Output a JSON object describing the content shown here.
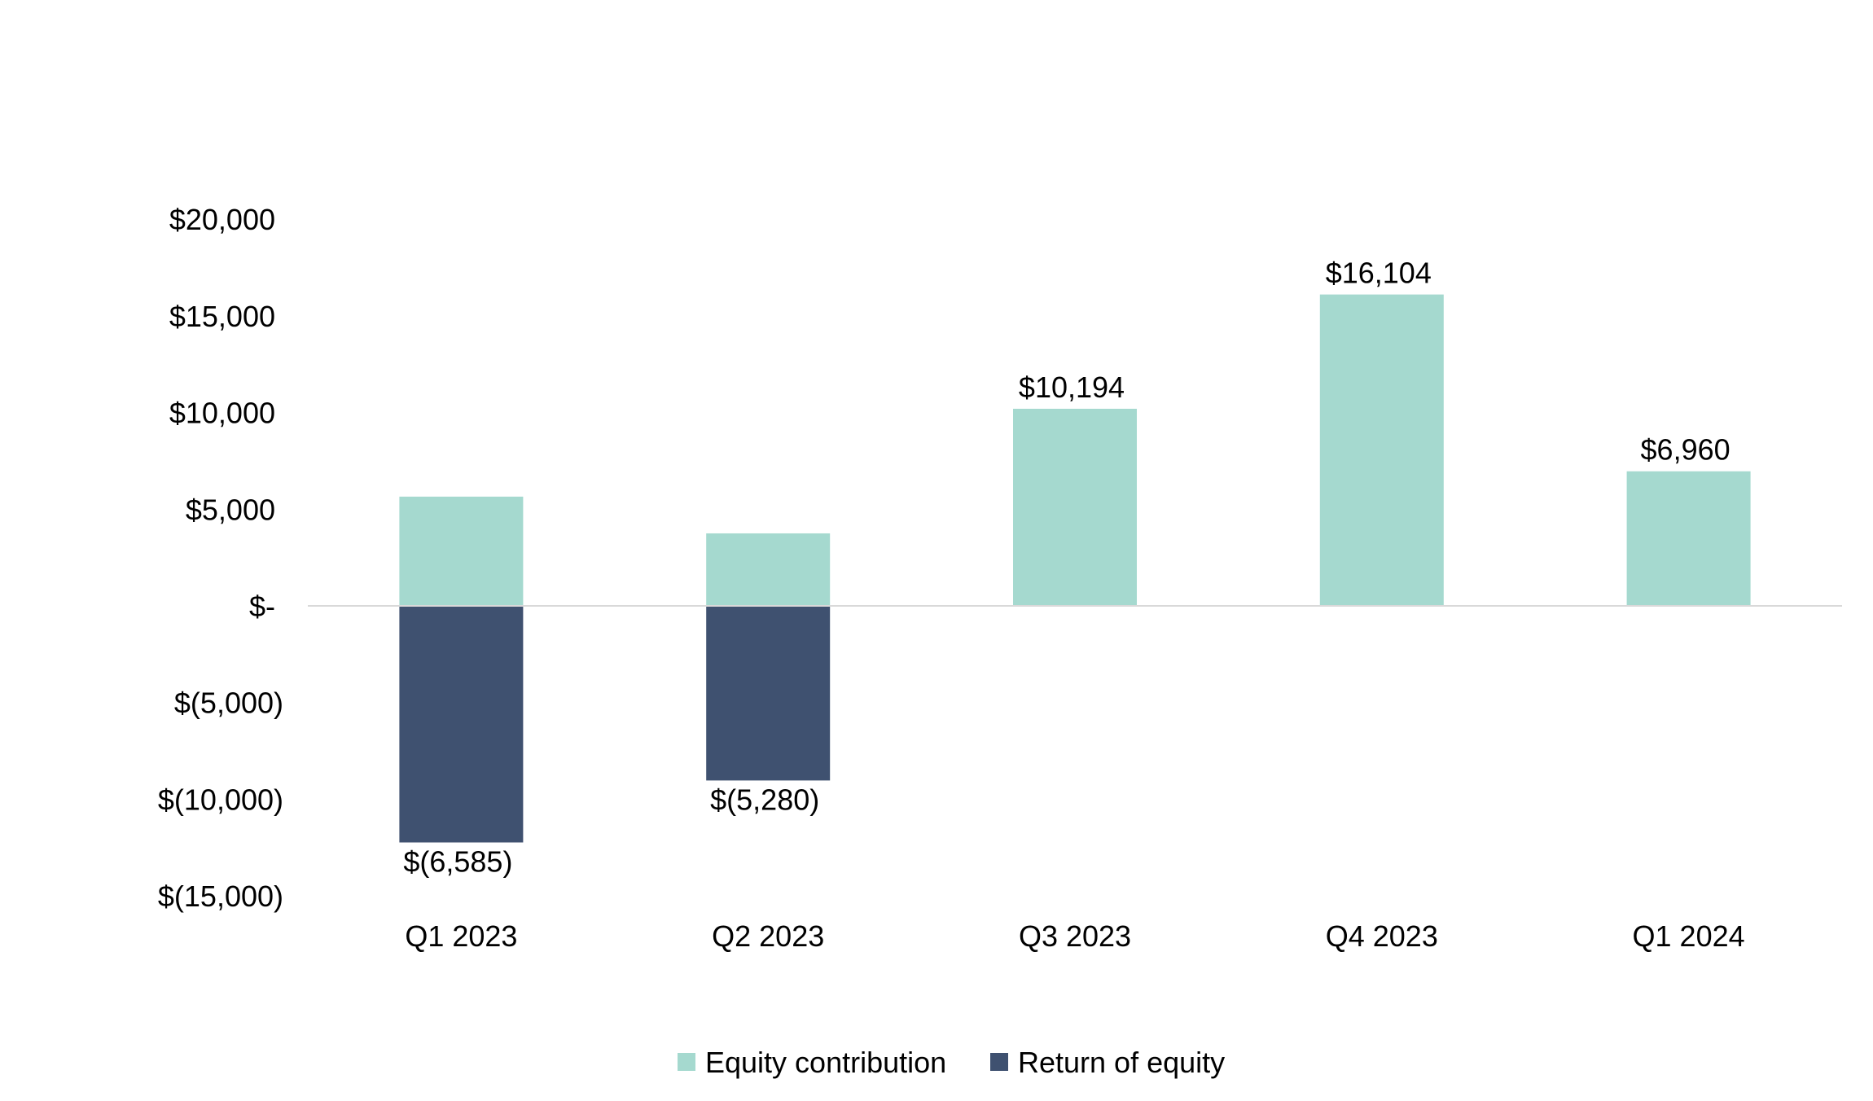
{
  "chart_data": {
    "type": "bar",
    "stacked": true,
    "categories": [
      "Q1 2023",
      "Q2 2023",
      "Q3 2023",
      "Q4 2023",
      "Q1 2024"
    ],
    "series": [
      {
        "name": "Equity contribution",
        "color": "#a5d9cf",
        "values": [
          5650,
          3750,
          10194,
          16104,
          6960
        ],
        "labels": [
          "",
          "",
          "$10,194",
          "$16,104",
          "$6,960"
        ]
      },
      {
        "name": "Return of equity",
        "color": "#3f5170",
        "values": [
          -12235,
          -9030,
          0,
          0,
          0
        ],
        "labels": [
          "$(6,585)",
          "$(5,280)",
          "",
          "",
          ""
        ]
      }
    ],
    "yticks": [
      {
        "value": 20000,
        "label": "$20,000"
      },
      {
        "value": 15000,
        "label": "$15,000"
      },
      {
        "value": 10000,
        "label": "$10,000"
      },
      {
        "value": 5000,
        "label": "$5,000"
      },
      {
        "value": 0,
        "label": "$-"
      },
      {
        "value": -5000,
        "label": "$(5,000)"
      },
      {
        "value": -10000,
        "label": "$(10,000)"
      },
      {
        "value": -15000,
        "label": "$(15,000)"
      }
    ],
    "ylim": [
      -15000,
      20000
    ],
    "title": "",
    "xlabel": "",
    "ylabel": "",
    "grid": false,
    "legend_position": "bottom-center"
  }
}
